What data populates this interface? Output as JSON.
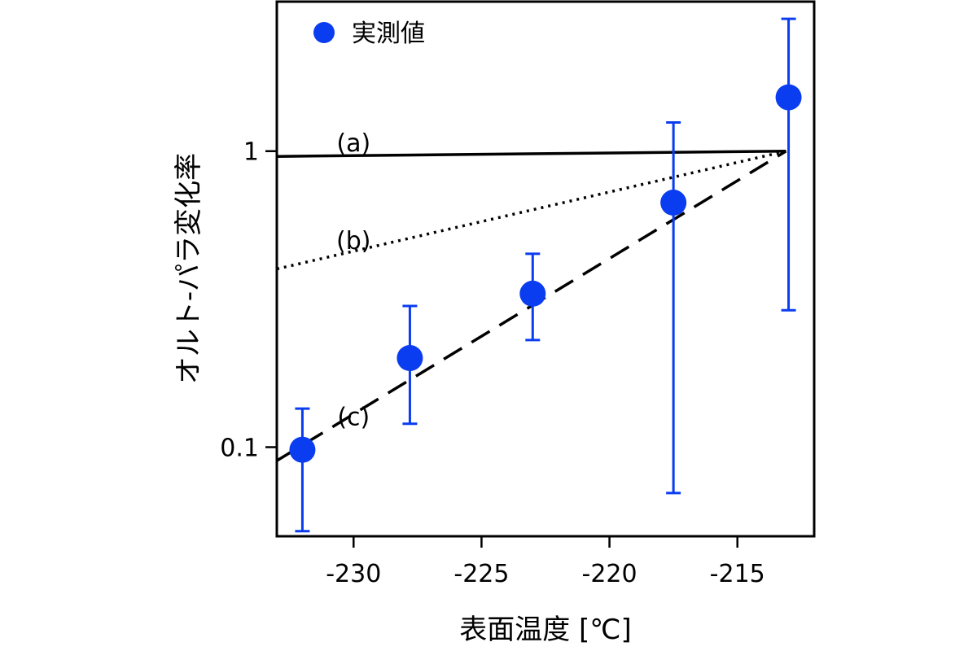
{
  "chart_data": {
    "type": "scatter",
    "xlabel": "表面温度 [℃]",
    "ylabel": "オルト-パラ変化率",
    "xlim": [
      -233,
      -212
    ],
    "ylim": [
      0.05,
      3.2
    ],
    "yscale": "log",
    "xticks": [
      -230,
      -225,
      -220,
      -215
    ],
    "xtick_labels": [
      "-230",
      "-225",
      "-220",
      "-215"
    ],
    "yticks": [
      0.1,
      1
    ],
    "ytick_labels": [
      "0.1",
      "1"
    ],
    "grid": false,
    "legend": {
      "position": "top-left"
    },
    "colors": {
      "points": "#0a3cf0",
      "lines": "#000000"
    },
    "series": [
      {
        "name": "実測値",
        "x": [
          -232,
          -227.8,
          -223,
          -217.5,
          -213
        ],
        "y": [
          0.098,
          0.2,
          0.33,
          0.67,
          1.52
        ],
        "y_low": [
          0.052,
          0.12,
          0.23,
          0.07,
          0.29
        ],
        "y_high": [
          0.135,
          0.3,
          0.45,
          1.25,
          2.8
        ]
      }
    ],
    "lines": [
      {
        "label": "(a)",
        "style": "solid",
        "x": [
          -233,
          -213.1
        ],
        "y": [
          0.96,
          1.0
        ]
      },
      {
        "label": "(b)",
        "style": "dotted",
        "x": [
          -233,
          -213.1
        ],
        "y": [
          0.4,
          1.0
        ]
      },
      {
        "label": "(c)",
        "style": "dashed",
        "x": [
          -233,
          -213.1
        ],
        "y": [
          0.09,
          1.0
        ]
      }
    ],
    "line_labels": [
      "(a)",
      "(b)",
      "(c)"
    ]
  }
}
